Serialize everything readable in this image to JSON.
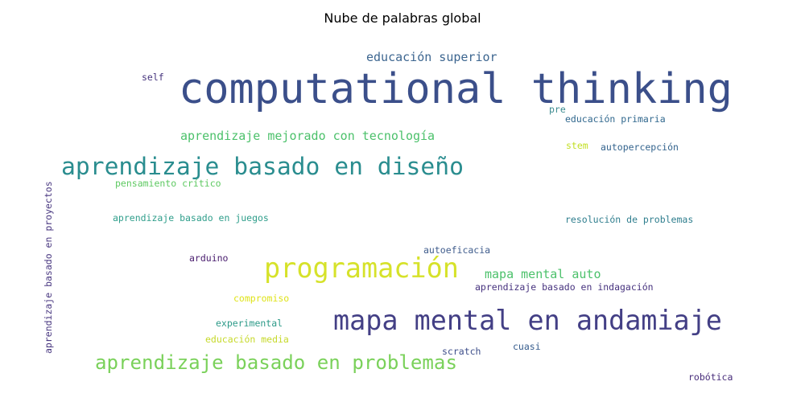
{
  "chart_data": {
    "type": "wordcloud",
    "title": "Nube de palabras global",
    "words": [
      {
        "text": "computational thinking",
        "color": "#3b4f8a"
      },
      {
        "text": "aprendizaje basado en diseño",
        "color": "#2a8d8f"
      },
      {
        "text": "programación",
        "color": "#d6e22a"
      },
      {
        "text": "mapa mental en andamiaje",
        "color": "#433f85"
      },
      {
        "text": "aprendizaje basado en problemas",
        "color": "#7ad15a"
      },
      {
        "text": "educación superior",
        "color": "#3d6690"
      },
      {
        "text": "aprendizaje mejorado con tecnología",
        "color": "#4cc16b"
      },
      {
        "text": "mapa mental auto",
        "color": "#4cc16b"
      },
      {
        "text": "aprendizaje basado en proyectos",
        "color": "#4b3a82"
      },
      {
        "text": "self",
        "color": "#45337d"
      },
      {
        "text": "pre",
        "color": "#3a8a8f"
      },
      {
        "text": "educación primaria",
        "color": "#31688e"
      },
      {
        "text": "stem",
        "color": "#c2df23"
      },
      {
        "text": "autopercepción",
        "color": "#33638d"
      },
      {
        "text": "pensamiento crítico",
        "color": "#5ec962"
      },
      {
        "text": "aprendizaje basado en juegos",
        "color": "#2f9e8b"
      },
      {
        "text": "resolución de problemas",
        "color": "#2f7e8e"
      },
      {
        "text": "autoeficacia",
        "color": "#3f5c8c"
      },
      {
        "text": "arduino",
        "color": "#481b6d"
      },
      {
        "text": "aprendizaje basado en indagación",
        "color": "#46327e"
      },
      {
        "text": "compromiso",
        "color": "#dfe318"
      },
      {
        "text": "experimental",
        "color": "#2c9a88"
      },
      {
        "text": "educación media",
        "color": "#c6d92a"
      },
      {
        "text": "scratch",
        "color": "#3d4e8a"
      },
      {
        "text": "cuasi",
        "color": "#365c8d"
      },
      {
        "text": "robótica",
        "color": "#472c7a"
      }
    ]
  }
}
